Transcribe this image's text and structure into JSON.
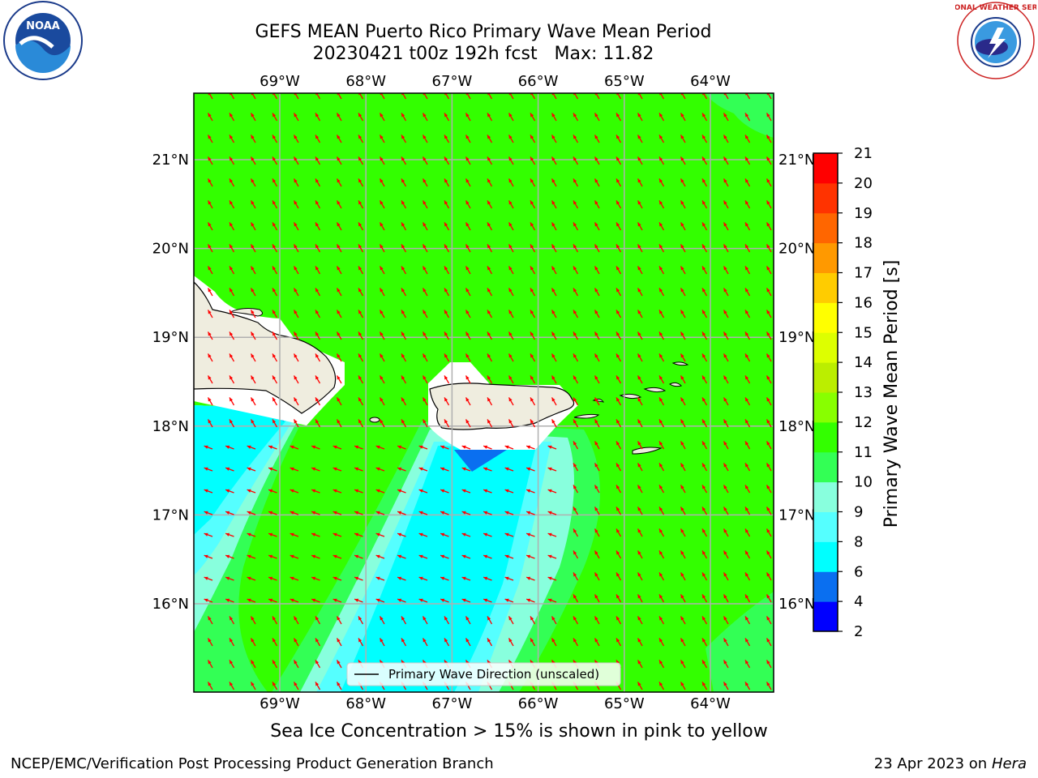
{
  "title": {
    "line1": "GEFS MEAN Puerto Rico Primary Wave Mean Period",
    "line2": "20230421 t00z 192h fcst   Max: 11.82"
  },
  "map": {
    "lon_labels": [
      "69°W",
      "68°W",
      "67°W",
      "66°W",
      "65°W",
      "64°W"
    ],
    "lat_labels": [
      "21°N",
      "20°N",
      "19°N",
      "18°N",
      "17°N",
      "16°N"
    ],
    "lon_values": [
      -69,
      -68,
      -67,
      -66,
      -65,
      -64
    ],
    "lat_values": [
      21,
      20,
      19,
      18,
      17,
      16
    ],
    "legend_label": "Primary Wave Direction (unscaled)",
    "arrow_color": "#ff0000",
    "land_color": "#efeddf",
    "background_period_color": "#33ff00"
  },
  "colorbar": {
    "label": "Primary Wave Mean Period [s]",
    "ticks": [
      "2",
      "4",
      "6",
      "8",
      "9",
      "10",
      "11",
      "12",
      "13",
      "14",
      "15",
      "16",
      "17",
      "18",
      "19",
      "20",
      "21"
    ],
    "colors": [
      "#0000ff",
      "#0a6ff0",
      "#00ffff",
      "#55ffff",
      "#88ffdd",
      "#33ff55",
      "#33ff00",
      "#88ff00",
      "#bbee00",
      "#ddff00",
      "#ffff00",
      "#ffcc00",
      "#ff9900",
      "#ff6600",
      "#ff3300",
      "#ff0000"
    ]
  },
  "caption": "Sea Ice Concentration > 15% is shown in pink to yellow",
  "footer": {
    "left": "NCEP/EMC/Verification Post Processing Product Generation Branch",
    "right_prefix": "23 Apr 2023 on ",
    "right_italic": "Hera"
  },
  "logos": {
    "noaa_text": "NOAA",
    "nws_text": "NATIONAL WEATHER SERVICE"
  }
}
